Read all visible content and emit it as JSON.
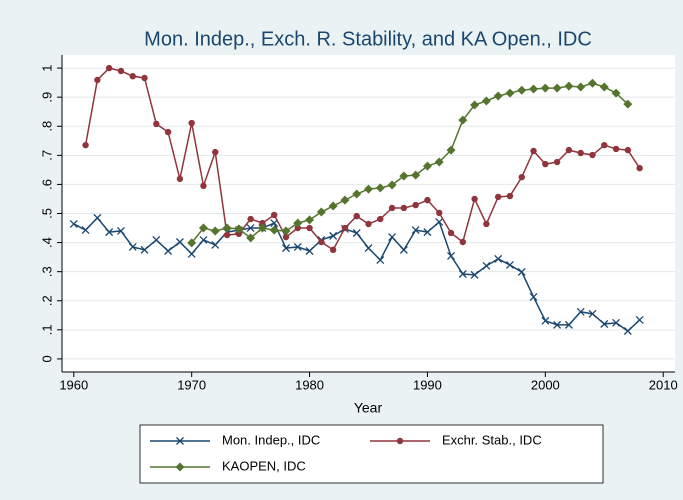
{
  "chart_data": {
    "type": "line",
    "title": "Mon. Indep., Exch. R. Stability, and KA Open., IDC",
    "x_label": "Year",
    "xlim": [
      1959,
      2011
    ],
    "xticks": [
      1960,
      1970,
      1980,
      1990,
      2000,
      2010
    ],
    "ylim": [
      -0.045,
      1.045
    ],
    "yticks": [
      {
        "value": 0,
        "label": "0"
      },
      {
        "value": 0.1,
        "label": ".1"
      },
      {
        "value": 0.2,
        "label": ".2"
      },
      {
        "value": 0.3,
        "label": ".3"
      },
      {
        "value": 0.4,
        "label": ".4"
      },
      {
        "value": 0.5,
        "label": ".5"
      },
      {
        "value": 0.6,
        "label": ".6"
      },
      {
        "value": 0.7,
        "label": ".7"
      },
      {
        "value": 0.8,
        "label": ".8"
      },
      {
        "value": 0.9,
        "label": ".9"
      },
      {
        "value": 1,
        "label": "1"
      }
    ],
    "grid": true,
    "legend_position": "bottom",
    "series": [
      {
        "name": "Mon. Indep., IDC",
        "color": "#1a476f",
        "marker": "x",
        "x": [
          1960,
          1961,
          1962,
          1963,
          1964,
          1965,
          1966,
          1967,
          1968,
          1969,
          1970,
          1971,
          1972,
          1973,
          1974,
          1975,
          1976,
          1977,
          1978,
          1979,
          1980,
          1981,
          1982,
          1983,
          1984,
          1985,
          1986,
          1987,
          1988,
          1989,
          1990,
          1991,
          1992,
          1993,
          1994,
          1995,
          1996,
          1997,
          1998,
          1999,
          2000,
          2001,
          2002,
          2003,
          2004,
          2005,
          2006,
          2007,
          2008
        ],
        "values": [
          0.464,
          0.443,
          0.485,
          0.436,
          0.44,
          0.385,
          0.375,
          0.409,
          0.371,
          0.402,
          0.361,
          0.409,
          0.392,
          0.436,
          0.443,
          0.45,
          0.45,
          0.467,
          0.381,
          0.385,
          0.371,
          0.409,
          0.423,
          0.447,
          0.433,
          0.381,
          0.34,
          0.419,
          0.375,
          0.443,
          0.436,
          0.471,
          0.354,
          0.292,
          0.289,
          0.32,
          0.344,
          0.323,
          0.299,
          0.213,
          0.131,
          0.117,
          0.117,
          0.162,
          0.155,
          0.12,
          0.124,
          0.096,
          0.134
        ]
      },
      {
        "name": "Exchr. Stab., IDC",
        "color": "#90353b",
        "marker": "circle",
        "x": [
          1961,
          1962,
          1963,
          1964,
          1965,
          1966,
          1967,
          1968,
          1969,
          1970,
          1971,
          1972,
          1973,
          1974,
          1975,
          1976,
          1977,
          1978,
          1979,
          1980,
          1981,
          1982,
          1983,
          1984,
          1985,
          1986,
          1987,
          1988,
          1989,
          1990,
          1991,
          1992,
          1993,
          1994,
          1995,
          1996,
          1997,
          1998,
          1999,
          2000,
          2001,
          2002,
          2003,
          2004,
          2005,
          2006,
          2007,
          2008
        ],
        "values": [
          0.735,
          0.959,
          1.0,
          0.99,
          0.972,
          0.966,
          0.808,
          0.78,
          0.619,
          0.811,
          0.595,
          0.711,
          0.426,
          0.43,
          0.481,
          0.467,
          0.495,
          0.419,
          0.45,
          0.45,
          0.402,
          0.375,
          0.45,
          0.491,
          0.464,
          0.481,
          0.519,
          0.519,
          0.529,
          0.546,
          0.502,
          0.433,
          0.402,
          0.55,
          0.464,
          0.557,
          0.56,
          0.625,
          0.715,
          0.67,
          0.677,
          0.718,
          0.708,
          0.701,
          0.735,
          0.722,
          0.718,
          0.656
        ]
      },
      {
        "name": "KAOPEN, IDC",
        "color": "#55752f",
        "marker": "diamond",
        "x": [
          1970,
          1971,
          1972,
          1973,
          1974,
          1975,
          1976,
          1977,
          1978,
          1979,
          1980,
          1981,
          1982,
          1983,
          1984,
          1985,
          1986,
          1987,
          1988,
          1989,
          1990,
          1991,
          1992,
          1993,
          1994,
          1995,
          1996,
          1997,
          1998,
          1999,
          2000,
          2001,
          2002,
          2003,
          2004,
          2005,
          2006,
          2007
        ],
        "values": [
          0.399,
          0.45,
          0.44,
          0.45,
          0.447,
          0.416,
          0.45,
          0.443,
          0.44,
          0.467,
          0.478,
          0.505,
          0.526,
          0.546,
          0.567,
          0.584,
          0.588,
          0.598,
          0.629,
          0.632,
          0.663,
          0.677,
          0.718,
          0.821,
          0.873,
          0.887,
          0.904,
          0.914,
          0.924,
          0.928,
          0.931,
          0.931,
          0.938,
          0.935,
          0.948,
          0.935,
          0.914,
          0.876
        ]
      }
    ]
  }
}
